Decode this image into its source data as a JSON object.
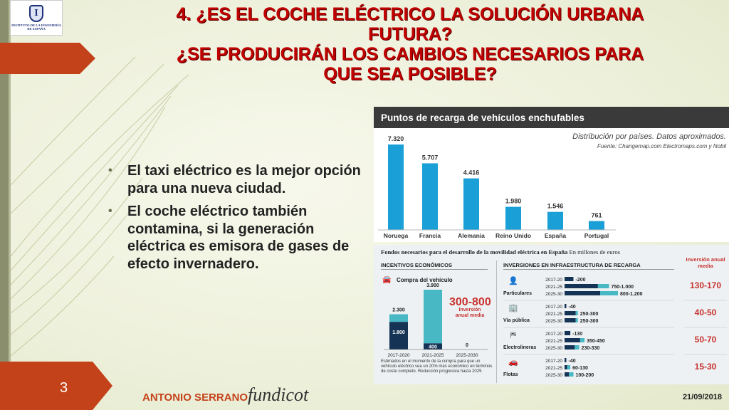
{
  "logo": {
    "initial": "I",
    "text": "INSTITUTO DE LA INGENIERÍA DE ESPAÑA"
  },
  "title": {
    "line1": "4. ¿ES EL COCHE ELÉCTRICO LA SOLUCIÓN URBANA",
    "line2": "FUTURA?",
    "line3": "¿SE PRODUCIRÁN LOS CAMBIOS NECESARIOS PARA",
    "line4": "QUE SEA POSIBLE?"
  },
  "bullets": [
    "El taxi eléctrico es la mejor opción para una nueva ciudad.",
    "El coche eléctrico también contamina, si la generación eléctrica es emisora de gases de efecto invernadero."
  ],
  "footer": {
    "page": "3",
    "author": "ANTONIO SERRANO",
    "signature": "fundicot",
    "date": "21/09/2018"
  },
  "colors": {
    "accent": "#c4421a",
    "title": "#c00000",
    "bar": "#1a9fd6",
    "navy": "#153354",
    "teal": "#47b8c4",
    "red": "#c7322e"
  },
  "chart_data": [
    {
      "type": "bar",
      "title": "Puntos de recarga de vehículos enchufables",
      "subtitle": "Distribución por países. Datos aproximados.",
      "source": "Fuente: Changemap.com Electromaps.com y Nobil",
      "categories": [
        "Noruega",
        "Francia",
        "Alemania",
        "Reino Unido",
        "España",
        "Portugal"
      ],
      "values": [
        7320,
        5707,
        4416,
        1980,
        1546,
        761
      ],
      "value_labels": [
        "7.320",
        "5.707",
        "4.416",
        "1.980",
        "1.546",
        "761"
      ]
    },
    {
      "type": "bar",
      "title": "Fondos necesarios para el desarrollo de la movilidad eléctrica en España",
      "unit": "En millones de euros",
      "incentives": {
        "header": "INCENTIVOS ECONÓMICOS",
        "subheader": "Compra del vehículo",
        "categories": [
          "2017-2020",
          "2021-2025",
          "2025-2030"
        ],
        "totals": [
          2300,
          3900,
          0
        ],
        "total_labels": [
          "2.300",
          "3.900",
          "0"
        ],
        "lower_values": [
          1800,
          400,
          0
        ],
        "lower_labels": [
          "1.800",
          "400",
          ""
        ],
        "annual": "300-800",
        "annual_label": "Inversión anual media",
        "footnote": "Estimados en el momento de la compra para que un vehículo eléctrico sea un 20% más económico en términos de coste completo. Reducción progresiva hasta 2025"
      },
      "infrastructure": {
        "header": "INVERSIONES EN INFRAESTRUCTURA DE RECARGA",
        "annual_header": "Inversión anual media",
        "groups": [
          {
            "name": "Particulares",
            "icon": "person-icon",
            "annual": "130-170",
            "rows": [
              {
                "period": "2017-20",
                "value_label": "-200",
                "dark": 200,
                "light": 0
              },
              {
                "period": "2021-25",
                "value_label": "750-1.000",
                "dark": 750,
                "light": 250
              },
              {
                "period": "2025-30",
                "value_label": "800-1.200",
                "dark": 800,
                "light": 400
              }
            ]
          },
          {
            "name": "Vía pública",
            "icon": "building-icon",
            "annual": "40-50",
            "rows": [
              {
                "period": "2017-20",
                "value_label": "-40",
                "dark": 40,
                "light": 0
              },
              {
                "period": "2021-25",
                "value_label": "250-300",
                "dark": 250,
                "light": 50
              },
              {
                "period": "2025-30",
                "value_label": "250-300",
                "dark": 250,
                "light": 50
              }
            ]
          },
          {
            "name": "Electrolineras",
            "icon": "signpost-icon",
            "annual": "50-70",
            "rows": [
              {
                "period": "2017-20",
                "value_label": "-130",
                "dark": 130,
                "light": 0
              },
              {
                "period": "2021-25",
                "value_label": "350-450",
                "dark": 350,
                "light": 100
              },
              {
                "period": "2025-30",
                "value_label": "230-330",
                "dark": 230,
                "light": 100
              }
            ]
          },
          {
            "name": "Flotas",
            "icon": "car-icon",
            "annual": "15-30",
            "rows": [
              {
                "period": "2017-20",
                "value_label": "-40",
                "dark": 40,
                "light": 0
              },
              {
                "period": "2021-25",
                "value_label": "60-130",
                "dark": 60,
                "light": 70
              },
              {
                "period": "2025-30",
                "value_label": "100-200",
                "dark": 100,
                "light": 100
              }
            ]
          }
        ]
      }
    }
  ]
}
